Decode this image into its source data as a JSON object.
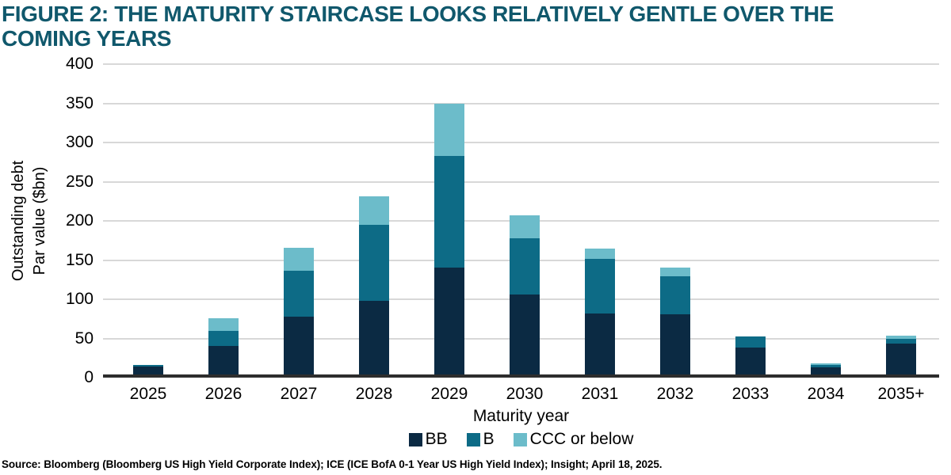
{
  "figure": {
    "title": "FIGURE 2: THE MATURITY STAIRCASE LOOKS RELATIVELY GENTLE OVER THE COMING YEARS",
    "source": "Source: Bloomberg (Bloomberg US High Yield Corporate Index); ICE (ICE BofA 0-1 Year US High Yield Index); Insight; April 18, 2025."
  },
  "chart_data": {
    "type": "bar",
    "stacked": true,
    "title": "FIGURE 2: THE MATURITY STAIRCASE LOOKS RELATIVELY GENTLE OVER THE COMING YEARS",
    "categories": [
      "2025",
      "2026",
      "2027",
      "2028",
      "2029",
      "2030",
      "2031",
      "2032",
      "2033",
      "2034",
      "2035+"
    ],
    "series": [
      {
        "name": "BB",
        "color": "#0b2a43",
        "values": [
          10,
          36,
          74,
          94,
          136,
          102,
          78,
          77,
          34,
          9,
          39
        ]
      },
      {
        "name": "B",
        "color": "#0d6b86",
        "values": [
          2,
          20,
          58,
          97,
          143,
          72,
          69,
          48,
          15,
          3,
          6
        ]
      },
      {
        "name": "CCC or below",
        "color": "#6cbcca",
        "values": [
          0,
          16,
          30,
          36,
          66,
          29,
          14,
          11,
          0,
          2,
          5
        ]
      }
    ],
    "totals": [
      12,
      72,
      162,
      227,
      345,
      203,
      161,
      136,
      49,
      14,
      50
    ],
    "xlabel": "Maturity year",
    "ylabel": "Outstanding debt",
    "ylabel2": "Par value ($bn)",
    "ylim": [
      0,
      400
    ],
    "yticks": [
      0,
      50,
      100,
      150,
      200,
      250,
      300,
      350,
      400
    ],
    "grid": true,
    "legend_position": "bottom"
  },
  "style": {
    "title_color": "#10586c",
    "gridline_color": "#d8d8d8",
    "axis_color": "#2d2d2d"
  }
}
